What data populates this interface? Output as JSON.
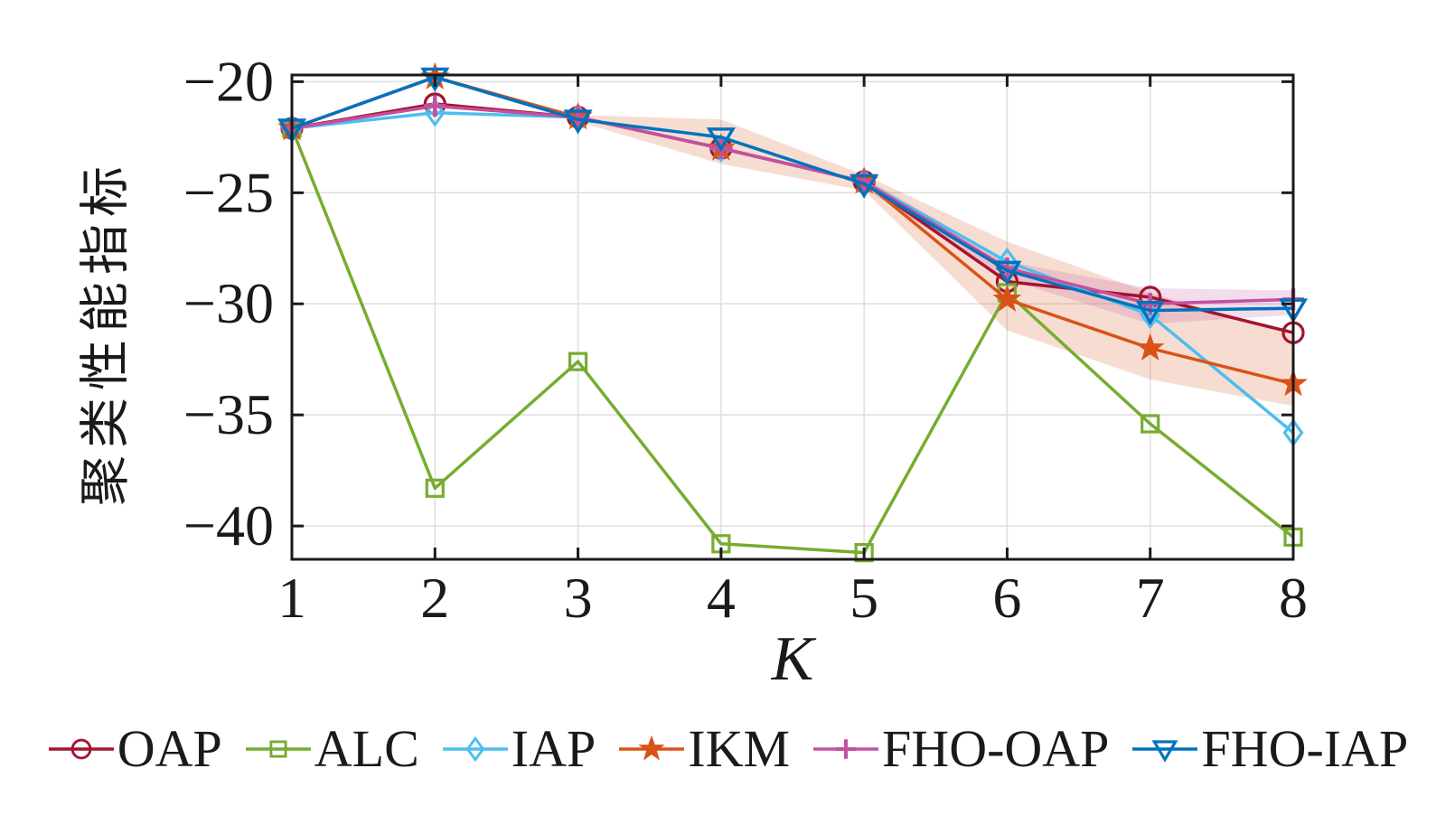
{
  "figure": {
    "background": "#ffffff"
  },
  "chart_data": {
    "type": "line",
    "title": "",
    "xlabel": "K",
    "ylabel": "聚类性能指标",
    "x": [
      1,
      2,
      3,
      4,
      5,
      6,
      7,
      8
    ],
    "xtick_labels": [
      "1",
      "2",
      "3",
      "4",
      "5",
      "6",
      "7",
      "8"
    ],
    "xlim": [
      1,
      8
    ],
    "yticks": [
      -20,
      -25,
      -30,
      -35,
      -40
    ],
    "ytick_labels": [
      "−20",
      "−25",
      "−30",
      "−35",
      "−40"
    ],
    "ylim": [
      -41.5,
      -19.7
    ],
    "grid": true,
    "grid_color": "#dedede",
    "axis_color": "#1a1a1a",
    "legend_position": "bottom",
    "series": [
      {
        "name": "OAP",
        "color": "#a2142f",
        "marker": "circle",
        "values": [
          -22.1,
          -21.0,
          -21.6,
          -23.0,
          -24.5,
          -29.0,
          -29.7,
          -31.3
        ]
      },
      {
        "name": "ALC",
        "color": "#77ac30",
        "marker": "square",
        "values": [
          -22.1,
          -38.3,
          -32.6,
          -40.8,
          -41.2,
          -29.5,
          -35.4,
          -40.5
        ]
      },
      {
        "name": "IAP",
        "color": "#4dbeee",
        "marker": "diamond",
        "values": [
          -22.1,
          -21.4,
          -21.6,
          -23.0,
          -24.5,
          -28.1,
          -30.5,
          -35.8
        ]
      },
      {
        "name": "IKM",
        "color": "#d95319",
        "marker": "star",
        "values": [
          -22.1,
          -19.8,
          -21.6,
          -23.0,
          -24.5,
          -29.8,
          -32.0,
          -33.6
        ]
      },
      {
        "name": "FHO-OAP",
        "color": "#c4509f",
        "marker": "plus",
        "values": [
          -22.1,
          -21.1,
          -21.6,
          -23.0,
          -24.5,
          -28.4,
          -30.0,
          -29.8
        ]
      },
      {
        "name": "FHO-IAP",
        "color": "#0072bd",
        "marker": "triangle-down",
        "values": [
          -22.1,
          -19.8,
          -21.7,
          -22.5,
          -24.6,
          -28.5,
          -30.3,
          -30.2
        ]
      }
    ],
    "bands": [
      {
        "series": "IKM",
        "color": "rgba(217,83,25,0.20)",
        "x": [
          3,
          4,
          5,
          6,
          7,
          8
        ],
        "upper": [
          -21.5,
          -21.7,
          -24.2,
          -27.2,
          -29.5,
          -31.4
        ],
        "lower": [
          -21.8,
          -23.7,
          -24.9,
          -31.2,
          -33.4,
          -34.6
        ]
      },
      {
        "series": "FHO-OAP",
        "color": "rgba(196,80,159,0.20)",
        "x": [
          5,
          6,
          7,
          8
        ],
        "upper": [
          -24.3,
          -28.1,
          -29.3,
          -29.4
        ],
        "lower": [
          -24.8,
          -28.9,
          -30.9,
          -30.5
        ]
      }
    ]
  }
}
